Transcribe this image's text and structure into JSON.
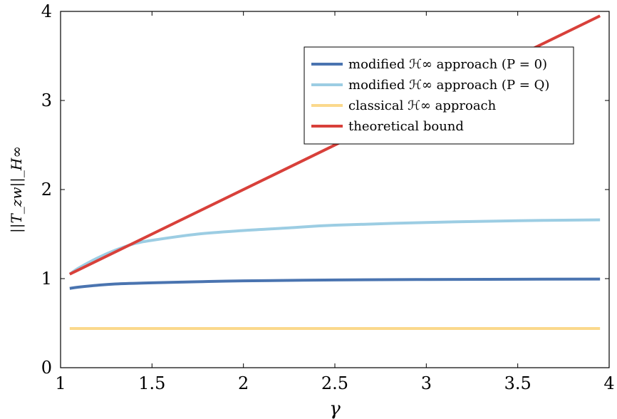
{
  "chart_data": {
    "type": "line",
    "title": "",
    "xlabel": "γ",
    "ylabel": "||T_zw||_H∞",
    "xlim": [
      1,
      4
    ],
    "ylim": [
      0,
      4
    ],
    "x_ticks": [
      "1",
      "1.5",
      "2",
      "2.5",
      "3",
      "3.5",
      "4"
    ],
    "y_ticks": [
      "0",
      "1",
      "2",
      "3",
      "4"
    ],
    "grid": false,
    "legend_position": "top-right",
    "series": [
      {
        "name": "modified ℋ∞ approach (P = 0)",
        "color": "#4a74b0",
        "x": [
          1.05,
          1.1,
          1.2,
          1.3,
          1.5,
          1.75,
          2.0,
          2.5,
          3.0,
          3.5,
          3.95
        ],
        "y": [
          0.89,
          0.905,
          0.925,
          0.94,
          0.953,
          0.965,
          0.975,
          0.985,
          0.99,
          0.993,
          0.995
        ]
      },
      {
        "name": "modified ℋ∞ approach (P = Q)",
        "color": "#9ccde3",
        "x": [
          1.05,
          1.1,
          1.2,
          1.3,
          1.4,
          1.5,
          1.75,
          2.0,
          2.25,
          2.5,
          3.0,
          3.5,
          3.95
        ],
        "y": [
          1.05,
          1.12,
          1.23,
          1.32,
          1.39,
          1.43,
          1.5,
          1.54,
          1.57,
          1.6,
          1.63,
          1.65,
          1.66
        ]
      },
      {
        "name": "classical ℋ∞ approach",
        "color": "#fbd98c",
        "x": [
          1.05,
          3.95
        ],
        "y": [
          0.44,
          0.44
        ]
      },
      {
        "name": "theoretical bound",
        "color": "#d8403a",
        "x": [
          1.05,
          3.95
        ],
        "y": [
          1.05,
          3.95
        ]
      }
    ]
  }
}
